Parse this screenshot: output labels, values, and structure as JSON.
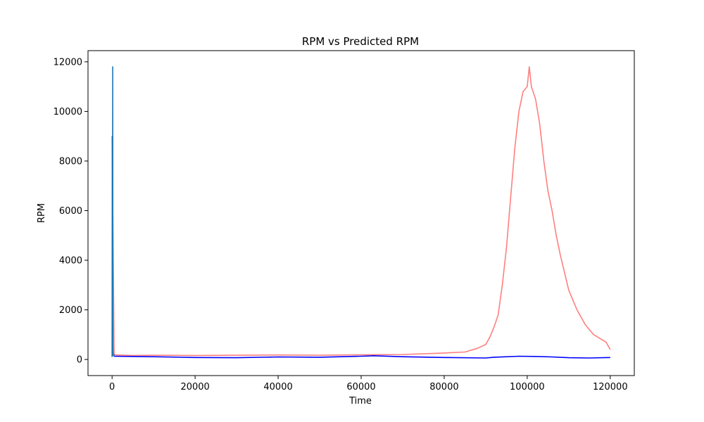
{
  "chart_data": {
    "type": "line",
    "title": "RPM vs Predicted RPM",
    "xlabel": "Time",
    "ylabel": "RPM",
    "xlim": [
      -5800,
      125800
    ],
    "ylim": [
      -650,
      12450
    ],
    "xticks": [
      0,
      20000,
      40000,
      60000,
      80000,
      100000,
      120000
    ],
    "yticks": [
      0,
      2000,
      4000,
      6000,
      8000,
      10000,
      12000
    ],
    "grid": false,
    "legend": "none",
    "series": [
      {
        "color": "#ff7f7f",
        "x": [
          0,
          500,
          1000,
          5000,
          10000,
          20000,
          30000,
          40000,
          50000,
          60000,
          70000,
          80000,
          85000,
          88000,
          90000,
          91000,
          92000,
          93000,
          94000,
          95000,
          96000,
          97000,
          98000,
          99000,
          100000,
          100500,
          101000,
          102000,
          103000,
          104000,
          105000,
          106000,
          107000,
          108000,
          109000,
          110000,
          111000,
          112000,
          113000,
          114000,
          115000,
          116000,
          117000,
          118000,
          119000,
          120000
        ],
        "y": [
          9000,
          200,
          180,
          160,
          170,
          160,
          170,
          180,
          170,
          190,
          200,
          260,
          300,
          450,
          600,
          900,
          1300,
          1800,
          3000,
          4500,
          6500,
          8500,
          10000,
          10800,
          11000,
          11800,
          11000,
          10500,
          9500,
          8000,
          6800,
          6000,
          5000,
          4200,
          3500,
          2800,
          2400,
          2000,
          1700,
          1400,
          1200,
          1000,
          900,
          800,
          700,
          400
        ]
      },
      {
        "color": "#1f77b4",
        "x": [
          0,
          50,
          100,
          150,
          200,
          250,
          300,
          400,
          500
        ],
        "y": [
          100,
          9000,
          300,
          11800,
          500,
          200,
          150,
          200,
          120
        ]
      },
      {
        "color": "#0000ff",
        "x": [
          500,
          5000,
          10000,
          20000,
          30000,
          40000,
          50000,
          60000,
          63000,
          70000,
          80000,
          90000,
          92000,
          98000,
          102000,
          106000,
          110000,
          115000,
          120000
        ],
        "y": [
          130,
          120,
          110,
          80,
          70,
          100,
          90,
          130,
          150,
          110,
          80,
          60,
          90,
          130,
          120,
          100,
          70,
          60,
          80
        ]
      }
    ]
  }
}
